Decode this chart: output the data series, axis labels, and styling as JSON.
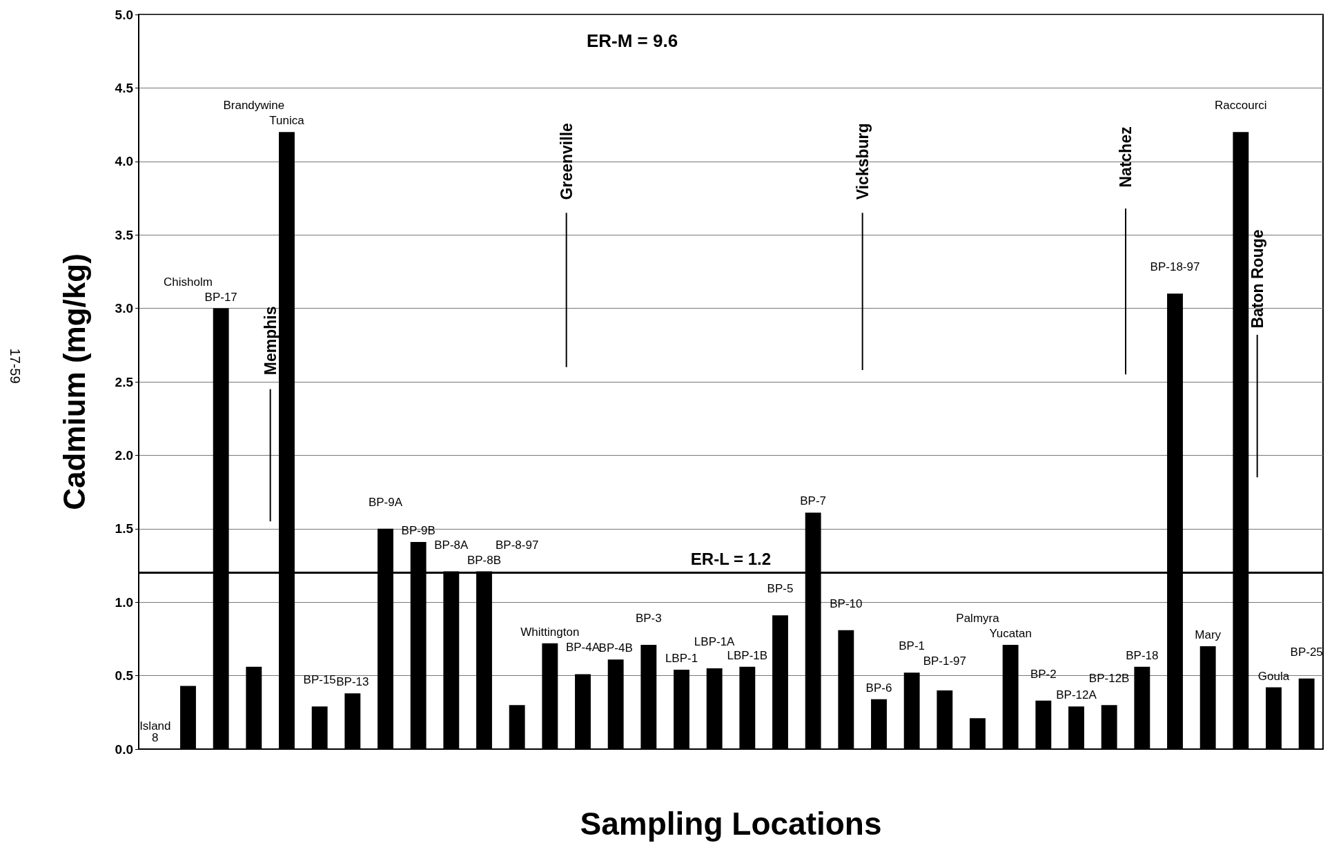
{
  "chart_data": {
    "type": "bar",
    "xlabel": "Sampling Locations",
    "ylabel": "Cadmium (mg/kg)",
    "categories": [
      "Island 8",
      "Chisholm",
      "BP-17",
      "Brandywine",
      "Tunica",
      "BP-15",
      "BP-13",
      "BP-9A",
      "BP-9B",
      "BP-8A",
      "BP-8B",
      "BP-8-97",
      "Whittington",
      "BP-4A",
      "BP-4B",
      "BP-3",
      "LBP-1",
      "LBP-1A",
      "LBP-1B",
      "BP-5",
      "BP-7",
      "BP-10",
      "BP-6",
      "BP-1",
      "BP-1-97",
      "Palmyra",
      "Yucatan",
      "BP-2",
      "BP-12A",
      "BP-12B",
      "BP-18",
      "BP-18-97",
      "Mary",
      "Raccourci",
      "Goula",
      "BP-25"
    ],
    "values": [
      null,
      0.43,
      3.0,
      0.56,
      4.2,
      0.29,
      0.38,
      1.5,
      1.41,
      1.21,
      1.21,
      0.3,
      0.72,
      0.51,
      0.61,
      0.71,
      0.54,
      0.55,
      0.56,
      0.91,
      1.61,
      0.81,
      0.34,
      0.52,
      0.4,
      0.21,
      0.71,
      0.33,
      0.29,
      0.3,
      0.56,
      3.1,
      0.7,
      4.2,
      0.42,
      0.48
    ],
    "color": "#000000",
    "ylim": [
      0,
      5
    ],
    "yticks": [
      {
        "value": 0,
        "label": "0.0"
      },
      {
        "value": 0.5,
        "label": "0.5"
      },
      {
        "value": 1,
        "label": "1.0"
      },
      {
        "value": 1.5,
        "label": "1.5"
      },
      {
        "value": 2,
        "label": "2.0"
      },
      {
        "value": 2.5,
        "label": "2.5"
      },
      {
        "value": 3,
        "label": "3.0"
      },
      {
        "value": 3.5,
        "label": "3.5"
      },
      {
        "value": 4,
        "label": "4.0"
      },
      {
        "value": 4.5,
        "label": "4.5"
      },
      {
        "value": 5,
        "label": "5.0"
      }
    ],
    "grid": "y",
    "ref_lines": [
      {
        "axis": "y",
        "value": 1.2,
        "label": "ER-L = 1.2",
        "color": "#000000"
      }
    ],
    "annotations": [
      "ER-M = 9.6",
      "Memphis",
      "Greenville",
      "Vicksburg",
      "Natchez",
      "Baton Rouge",
      "17-59"
    ]
  }
}
